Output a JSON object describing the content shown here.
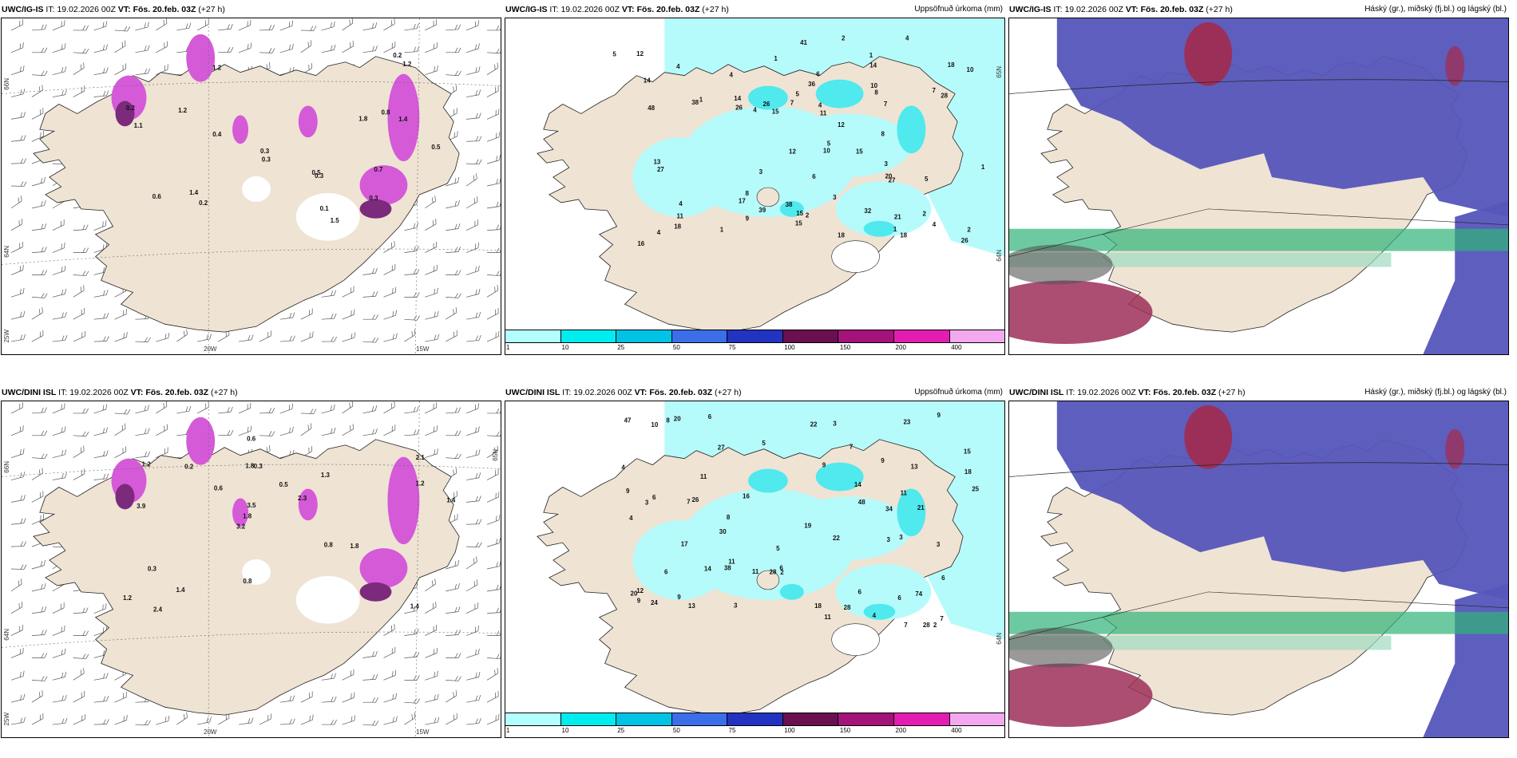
{
  "panels": [
    {
      "model": "UWC/IG-IS",
      "it_label": "IT:",
      "it_value": "19.02.2026 00Z",
      "vt_label": "VT:",
      "vt_value": "Fös. 20.feb. 03Z",
      "lead": "(+27 h)",
      "param": "",
      "labels": {
        "lat1": "66N",
        "lat2": "64N",
        "lat3": "25W",
        "lat_r": "",
        "lon1": "20W",
        "lon2": "15W"
      },
      "values": [
        "1.5",
        "1.2",
        "1.4",
        "1.2",
        "0.8",
        "0.1",
        "0.5",
        "0.4",
        "0.3",
        "0.2",
        "0.6",
        "0.2",
        "0.3",
        "0.5",
        "1.8",
        "0.2",
        "1.1",
        "1.2",
        "0.7",
        "1.4",
        "0.3",
        "0.3"
      ]
    },
    {
      "model": "UWC/IG-IS",
      "it_label": "IT:",
      "it_value": "19.02.2026 00Z",
      "vt_label": "VT:",
      "vt_value": "Fös. 20.feb. 03Z",
      "lead": "(+27 h)",
      "param": "Uppsöfnuð úrkoma (mm)",
      "labels": {
        "lat_r": "65N",
        "lat_r2": "64N"
      },
      "values": [
        "4",
        "5",
        "5",
        "6",
        "1",
        "2",
        "2",
        "1",
        "21",
        "17",
        "26",
        "26",
        "39",
        "41",
        "32",
        "14",
        "20",
        "27",
        "12",
        "10",
        "5",
        "18",
        "15",
        "15",
        "27",
        "14",
        "26",
        "36",
        "28",
        "3",
        "4",
        "3",
        "6",
        "16",
        "10",
        "18",
        "15",
        "7",
        "48",
        "38",
        "38",
        "8",
        "4",
        "9",
        "8",
        "4",
        "5",
        "2",
        "1",
        "2",
        "14",
        "7",
        "12",
        "1",
        "4",
        "4",
        "7",
        "15",
        "12",
        "3",
        "11",
        "10",
        "8",
        "18",
        "18",
        "13",
        "4",
        "11",
        "1",
        "4",
        "1"
      ]
    },
    {
      "model": "UWC/IG-IS",
      "it_label": "IT:",
      "it_value": "19.02.2026 00Z",
      "vt_label": "VT:",
      "vt_value": "Fös. 20.feb. 03Z",
      "lead": "(+27 h)",
      "param": "Háský (gr.), miðský (fj.bl.) og lágský (bl.)",
      "labels": {},
      "values": []
    },
    {
      "model": "UWC/DINI ISL",
      "it_label": "IT:",
      "it_value": "19.02.2026 00Z",
      "vt_label": "VT:",
      "vt_value": "Fös. 20.feb. 03Z",
      "lead": "(+27 h)",
      "param": "",
      "labels": {
        "lat1": "66N",
        "lat2": "64N",
        "lat3": "25W",
        "lat_r": "65N",
        "lon1": "20W",
        "lon2": "15W"
      },
      "values": [
        "1.4",
        "3.9",
        "2.1",
        "3.2",
        "1.3",
        "2.4",
        "1.8",
        "0.5",
        "0.3",
        "0.6",
        "1.2",
        "1.4",
        "0.3",
        "2.3",
        "1.8",
        "1.2",
        "0.6",
        "1.4",
        "0.8",
        "1.2",
        "1.8",
        "0.8",
        "3.5",
        "0.2"
      ]
    },
    {
      "model": "UWC/DINI ISL",
      "it_label": "IT:",
      "it_value": "19.02.2026 00Z",
      "vt_label": "VT:",
      "vt_value": "Fös. 20.feb. 03Z",
      "lead": "(+27 h)",
      "param": "Uppsöfnuð úrkoma (mm)",
      "labels": {
        "lat_r": "64N"
      },
      "values": [
        "5",
        "7",
        "8",
        "3",
        "2",
        "27",
        "28",
        "30",
        "38",
        "34",
        "21",
        "22",
        "47",
        "7",
        "8",
        "6",
        "19",
        "25",
        "15",
        "16",
        "28",
        "26",
        "28",
        "14",
        "74",
        "48",
        "18",
        "12",
        "13",
        "20",
        "11",
        "11",
        "24",
        "6",
        "9",
        "9",
        "6",
        "20",
        "17",
        "3",
        "4",
        "7",
        "3",
        "4",
        "2",
        "9",
        "6",
        "11",
        "6",
        "7",
        "11",
        "11",
        "22",
        "23",
        "18",
        "14",
        "13",
        "10",
        "6",
        "9",
        "3",
        "5",
        "4",
        "3",
        "6",
        "3",
        "9",
        "9"
      ]
    },
    {
      "model": "UWC/DINI ISL",
      "it_label": "IT:",
      "it_value": "19.02.2026 00Z",
      "vt_label": "VT:",
      "vt_value": "Fös. 20.feb. 03Z",
      "lead": "(+27 h)",
      "param": "Háský (gr.), miðský (fj.bl.) og lágský (bl.)",
      "labels": {},
      "values": []
    }
  ],
  "colorbar": {
    "ticks": [
      "1",
      "10",
      "25",
      "50",
      "75",
      "100",
      "150",
      "200",
      "400"
    ],
    "colors": [
      "#b3ffff",
      "#00eded",
      "#00c3e6",
      "#3d6eea",
      "#2233c2",
      "#6a0f50",
      "#a3137a",
      "#e41db2",
      "#f2a9ef"
    ]
  },
  "palette": {
    "land": "#efe3d3",
    "sea": "#ffffff",
    "precip_light": "#b6fbfb",
    "precip_med": "#4fe9ee",
    "snow_magenta": "#d45ad8",
    "snow_dark": "#7b2a7c",
    "high_cloud": "#5555bb",
    "mid_cloud": "#9c2f58",
    "low_cloud": "#2fb477"
  }
}
